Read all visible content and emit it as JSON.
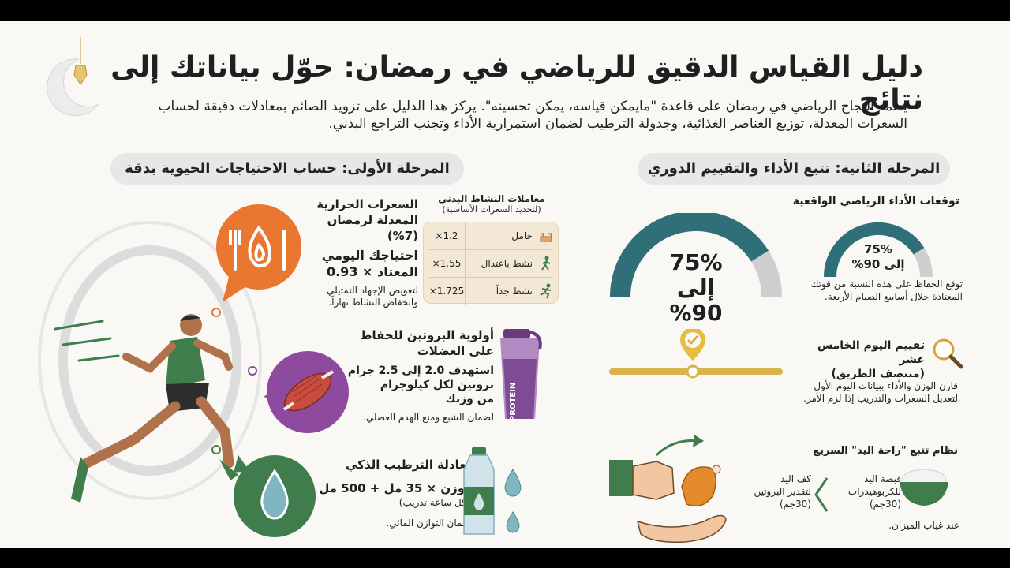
{
  "title": "دليل القياس الدقيق للرياضي في رمضان: حوّل بياناتك إلى نتائج",
  "intro": {
    "line1": "يعتمد النجاح الرياضي في رمضان على قاعدة \"مايمكن قياسه، يمكن تحسينه\". يركز هذا الدليل على تزويد الصائم بمعادلات دقيقة لحساب",
    "line2": "السعرات المعدلة، توزيع العناصر الغذائية، وجدولة الترطيب لضمان استمرارية الأداء وتجنب التراجع البدني."
  },
  "phase1": {
    "header": "المرحلة الأولى: حساب الاحتياجات الحيوية بدقة",
    "calories": {
      "title_l1": "السعرات الحرارية",
      "title_l2": "المعدلة لرمضان (7%)",
      "formula_l1": "احتياجك اليومي",
      "formula_l2": "المعتاد × 0.93",
      "note_l1": "لتعويض الإجهاد التمثيلي",
      "note_l2": "وانخفاض النشاط نهاراً."
    },
    "multipliers": {
      "title": "معاملات النشاط البدني",
      "subtitle": "(لتحديد السعرات الأساسية)",
      "rows": [
        {
          "label": "خامل",
          "value": "1.2×"
        },
        {
          "label": "نشط باعتدال",
          "value": "1.55×"
        },
        {
          "label": "نشط جداً",
          "value": "1.725×"
        }
      ]
    },
    "protein": {
      "title_l1": "أولوية البروتين للحفاظ",
      "title_l2": "على العضلات",
      "target_l1": "استهدف 2.0 إلى 2.5 جرام",
      "target_l2": "بروتين لكل كيلوجرام",
      "target_l3": "من وزنك",
      "note": "لضمان الشبع ومنع الهدم العضلي.",
      "shaker_label": "PROTEIN"
    },
    "hydration": {
      "title": "معادلة الترطيب الذكي",
      "formula": "الوزن × 35 مل + 500 مل",
      "formula_sub": "(لكل ساعة تدريب)",
      "note": "لضمان التوازن المائي."
    }
  },
  "phase2": {
    "header": "المرحلة الثانية: تتبع الأداء والتقييم الدوري",
    "expectations": {
      "title": "توقعات الأداء الرياضي الواقعية",
      "big_l1": "75%",
      "big_l2": "إلى 90%",
      "small_l1": "75%",
      "small_l2": "إلى 90%",
      "note_l1": "توقع الحفاظ على هذه النسبة من قوتك",
      "note_l2": "المعتادة خلال أسابيع الصيام الأربعة.",
      "gauge_fraction": 0.82
    },
    "midpoint": {
      "title_l1": "تقييم اليوم الخامس عشر",
      "title_l2": "(منتصف الطريق)",
      "note_l1": "قارن الوزن والأداء ببيانات اليوم الأول",
      "note_l2": "لتعديل السعرات والتدريب إذا لزم الأمر."
    },
    "hand_system": {
      "title": "نظام تتبع \"راحة اليد\" السريع",
      "carb_l1": "قبضة اليد",
      "carb_l2": "للكربوهيدرات",
      "carb_l3": "(30جم)",
      "protein_l1": "كف اليد",
      "protein_l2": "لتقدير البروتين",
      "protein_l3": "(30جم)",
      "note": "عند غياب الميزان."
    }
  },
  "colors": {
    "teal": "#2f6f78",
    "green": "#3f7d4d",
    "orange": "#e9772f",
    "purple": "#8e4a9f",
    "gold": "#d9b44a",
    "gray": "#cfcfcf"
  }
}
